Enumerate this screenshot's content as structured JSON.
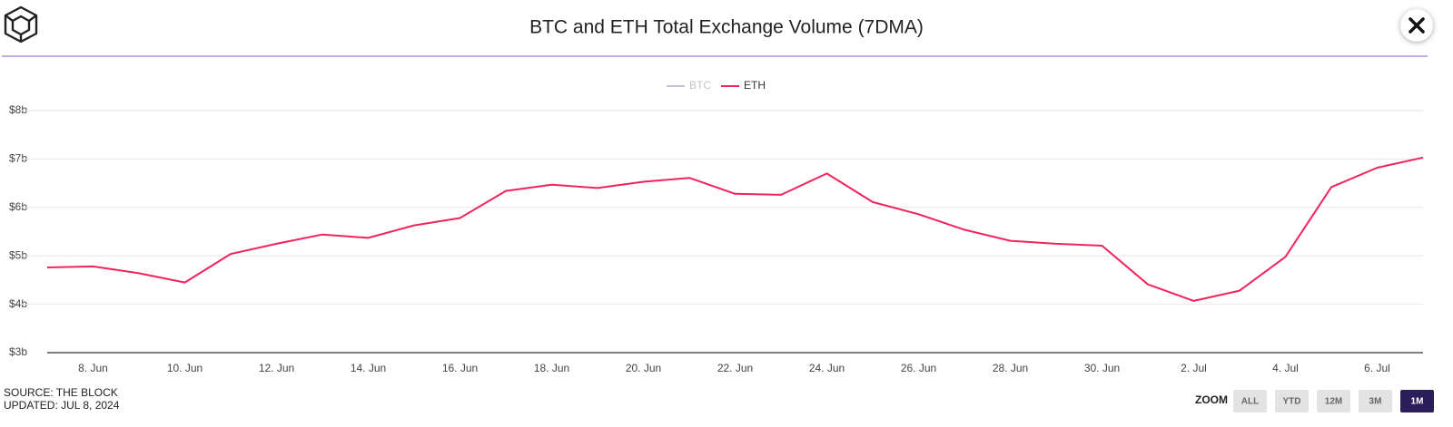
{
  "chart_data": {
    "type": "line",
    "title": "BTC and ETH Total Exchange Volume (7DMA)",
    "categories": [
      null,
      "8. Jun",
      null,
      "10. Jun",
      null,
      "12. Jun",
      null,
      "14. Jun",
      null,
      "16. Jun",
      null,
      "18. Jun",
      null,
      "20. Jun",
      null,
      "22. Jun",
      null,
      "24. Jun",
      null,
      "26. Jun",
      null,
      "28. Jun",
      null,
      "30. Jun",
      null,
      "2. Jul",
      null,
      "4. Jul",
      null,
      "6. Jul",
      null
    ],
    "series": [
      {
        "name": "BTC",
        "color": "#c5c0d8",
        "visible": false,
        "values": [
          null,
          null,
          null,
          null,
          null,
          null,
          null,
          null,
          null,
          null,
          null,
          null,
          null,
          null,
          null,
          null,
          null,
          null,
          null,
          null,
          null,
          null,
          null,
          null,
          null,
          null,
          null,
          null,
          null,
          null,
          null
        ]
      },
      {
        "name": "ETH",
        "color": "#f0245a",
        "visible": true,
        "values": [
          4.76,
          4.78,
          4.64,
          4.45,
          5.04,
          5.25,
          5.44,
          5.37,
          5.63,
          5.78,
          6.34,
          6.47,
          6.4,
          6.53,
          6.61,
          6.28,
          6.26,
          6.7,
          6.11,
          5.86,
          5.54,
          5.31,
          5.25,
          5.21,
          4.41,
          4.07,
          4.28,
          4.98,
          6.42,
          6.82,
          7.03
        ]
      }
    ],
    "ylim": [
      3,
      8
    ],
    "yticks": [
      {
        "value": 3,
        "label": "$3b"
      },
      {
        "value": 4,
        "label": "$4b"
      },
      {
        "value": 5,
        "label": "$5b"
      },
      {
        "value": 6,
        "label": "$6b"
      },
      {
        "value": 7,
        "label": "$7b"
      },
      {
        "value": 8,
        "label": "$8b"
      }
    ],
    "grid": true,
    "legend": "top"
  },
  "footer": {
    "source": "SOURCE: THE BLOCK",
    "updated": "UPDATED: JUL 8, 2024"
  },
  "zoom": {
    "label": "ZOOM",
    "buttons": [
      "ALL",
      "YTD",
      "12M",
      "3M",
      "1M"
    ],
    "active": 4
  }
}
